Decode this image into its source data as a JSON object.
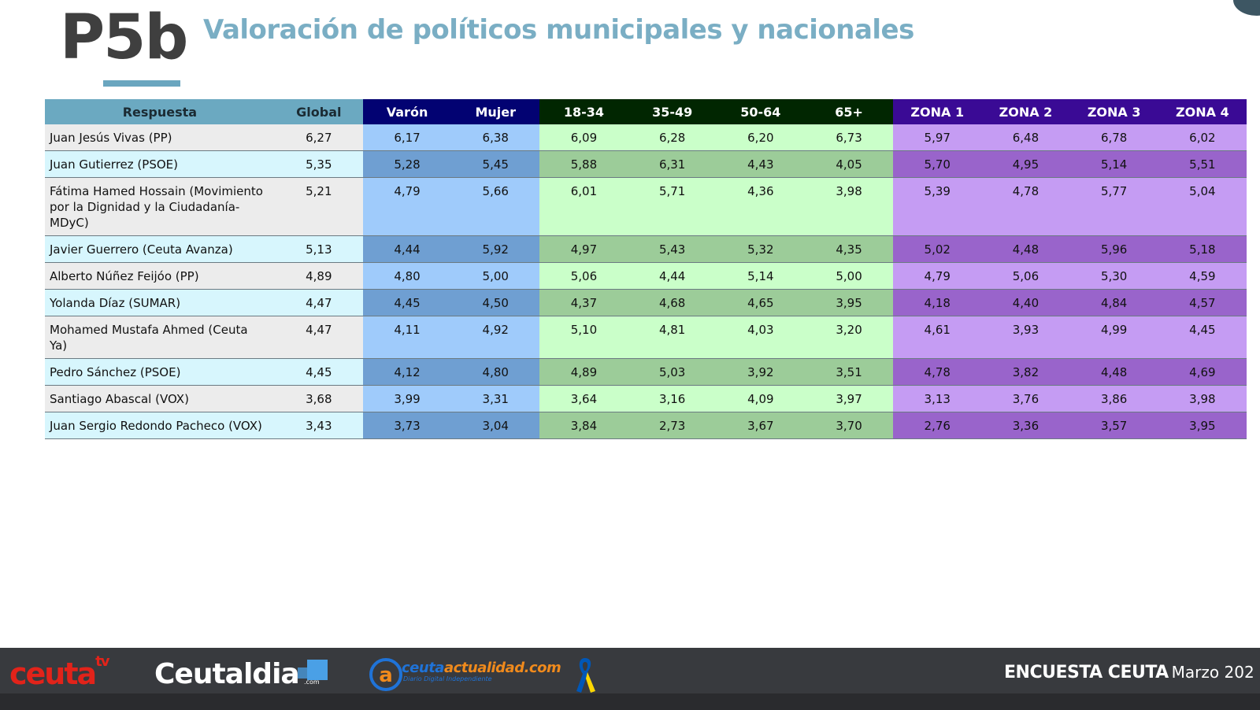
{
  "header": {
    "code": "P5b",
    "title": "Valoración de políticos municipales y nacionales"
  },
  "table": {
    "columns": [
      "Respuesta",
      "Global",
      "Varón",
      "Mujer",
      "18-34",
      "35-49",
      "50-64",
      "65+",
      "ZONA 1",
      "ZONA 2",
      "ZONA 3",
      "ZONA 4"
    ],
    "rows": [
      {
        "name": "Juan Jesús Vivas (PP)",
        "values": [
          "6,27",
          "6,17",
          "6,38",
          "6,09",
          "6,28",
          "6,20",
          "6,73",
          "5,97",
          "6,48",
          "6,78",
          "6,02"
        ]
      },
      {
        "name": "Juan Gutierrez (PSOE)",
        "values": [
          "5,35",
          "5,28",
          "5,45",
          "5,88",
          "6,31",
          "4,43",
          "4,05",
          "5,70",
          "4,95",
          "5,14",
          "5,51"
        ]
      },
      {
        "name": "Fátima Hamed Hossain (Movimiento por la Dignidad y la Ciudadanía-MDyC)",
        "values": [
          "5,21",
          "4,79",
          "5,66",
          "6,01",
          "5,71",
          "4,36",
          "3,98",
          "5,39",
          "4,78",
          "5,77",
          "5,04"
        ]
      },
      {
        "name": "Javier Guerrero (Ceuta Avanza)",
        "values": [
          "5,13",
          "4,44",
          "5,92",
          "4,97",
          "5,43",
          "5,32",
          "4,35",
          "5,02",
          "4,48",
          "5,96",
          "5,18"
        ]
      },
      {
        "name": "Alberto Núñez Feijóo (PP)",
        "values": [
          "4,89",
          "4,80",
          "5,00",
          "5,06",
          "4,44",
          "5,14",
          "5,00",
          "4,79",
          "5,06",
          "5,30",
          "4,59"
        ]
      },
      {
        "name": "Yolanda Díaz (SUMAR)",
        "values": [
          "4,47",
          "4,45",
          "4,50",
          "4,37",
          "4,68",
          "4,65",
          "3,95",
          "4,18",
          "4,40",
          "4,84",
          "4,57"
        ]
      },
      {
        "name": "Mohamed Mustafa Ahmed (Ceuta Ya)",
        "values": [
          "4,47",
          "4,11",
          "4,92",
          "5,10",
          "4,81",
          "4,03",
          "3,20",
          "4,61",
          "3,93",
          "4,99",
          "4,45"
        ]
      },
      {
        "name": "Pedro Sánchez (PSOE)",
        "values": [
          "4,45",
          "4,12",
          "4,80",
          "4,89",
          "5,03",
          "3,92",
          "3,51",
          "4,78",
          "3,82",
          "4,48",
          "4,69"
        ]
      },
      {
        "name": "Santiago Abascal (VOX)",
        "values": [
          "3,68",
          "3,99",
          "3,31",
          "3,64",
          "3,16",
          "4,09",
          "3,97",
          "3,13",
          "3,76",
          "3,86",
          "3,98"
        ]
      },
      {
        "name": "Juan Sergio Redondo Pacheco (VOX)",
        "values": [
          "3,43",
          "3,73",
          "3,04",
          "3,84",
          "2,73",
          "3,67",
          "3,70",
          "2,76",
          "3,36",
          "3,57",
          "3,95"
        ]
      }
    ]
  },
  "footer": {
    "logo_ceutatv": "ceuta",
    "logo_ceutatv_sup": "tv",
    "logo_ceutaldia": "Ceutaldia",
    "logo_ceutaldia_com": ".com",
    "logo_ceutaactualidad_a": "ceuta",
    "logo_ceutaactualidad_b": "actualidad.com",
    "logo_ceutaactualidad_sub": "Diario Digital Independiente",
    "survey_label": "ENCUESTA CEUTA",
    "survey_date": "Marzo 202"
  },
  "colors": {
    "header_blue": "#6ba9c1",
    "sex_header": "#020272",
    "age_header": "#012601",
    "zone_header": "#3a0a95",
    "footer_bg": "#383a3e"
  },
  "icons": [
    "ribbon-icon",
    "at-sign-icon"
  ]
}
